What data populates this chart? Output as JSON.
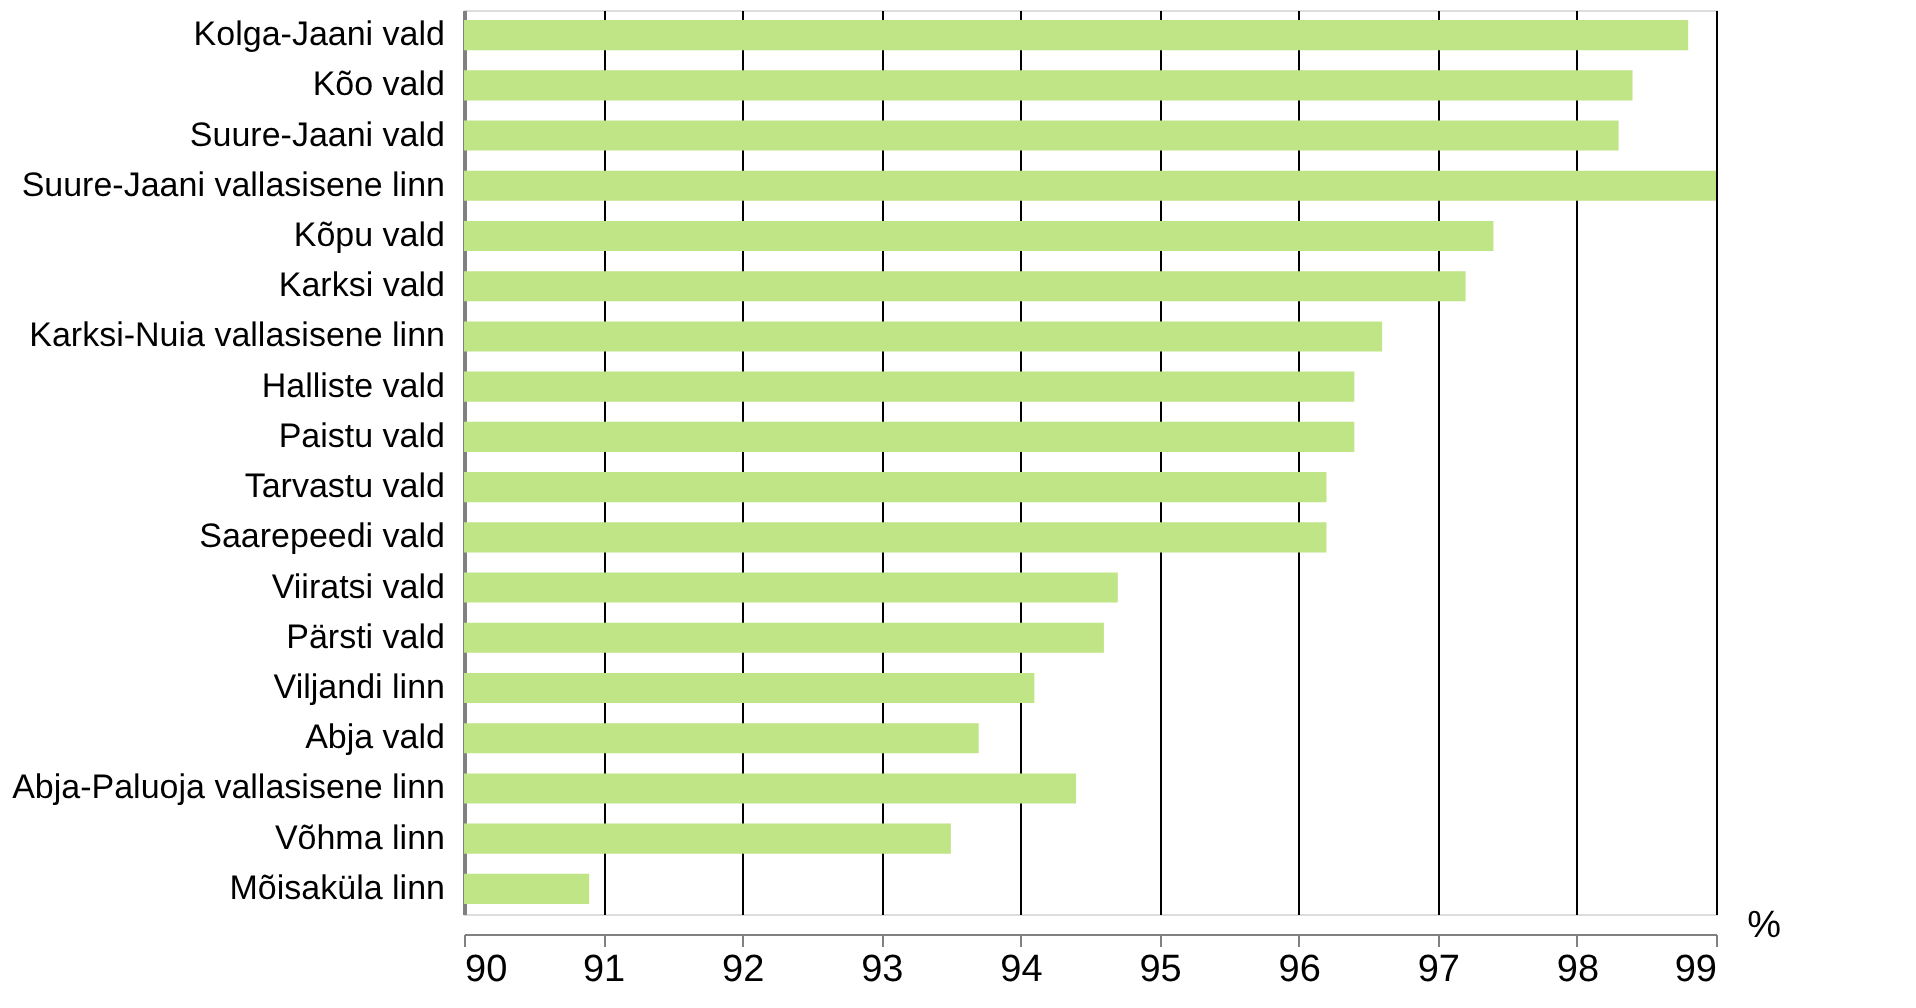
{
  "chart_data": {
    "type": "bar",
    "orientation": "horizontal",
    "xlabel": "%",
    "categories": [
      "Kolga-Jaani vald",
      "Kõo vald",
      "Suure-Jaani vald",
      "Suure-Jaani vallasisene linn",
      "Kõpu vald",
      "Karksi vald",
      "Karksi-Nuia vallasisene linn",
      "Halliste vald",
      "Paistu vald",
      "Tarvastu vald",
      "Saarepeedi vald",
      "Viiratsi vald",
      "Pärsti vald",
      "Viljandi linn",
      "Abja vald",
      "Abja-Paluoja vallasisene linn",
      "Võhma linn",
      "Mõisaküla linn"
    ],
    "values": [
      98.8,
      98.4,
      98.3,
      99.0,
      97.4,
      97.2,
      96.6,
      96.4,
      96.4,
      96.2,
      96.2,
      94.7,
      94.6,
      94.1,
      93.7,
      94.4,
      93.5,
      90.9
    ],
    "color": "#c0e587",
    "xlim": [
      90,
      99
    ],
    "xticks": [
      90,
      91,
      92,
      93,
      94,
      95,
      96,
      97,
      98,
      99
    ],
    "grid": "x"
  }
}
